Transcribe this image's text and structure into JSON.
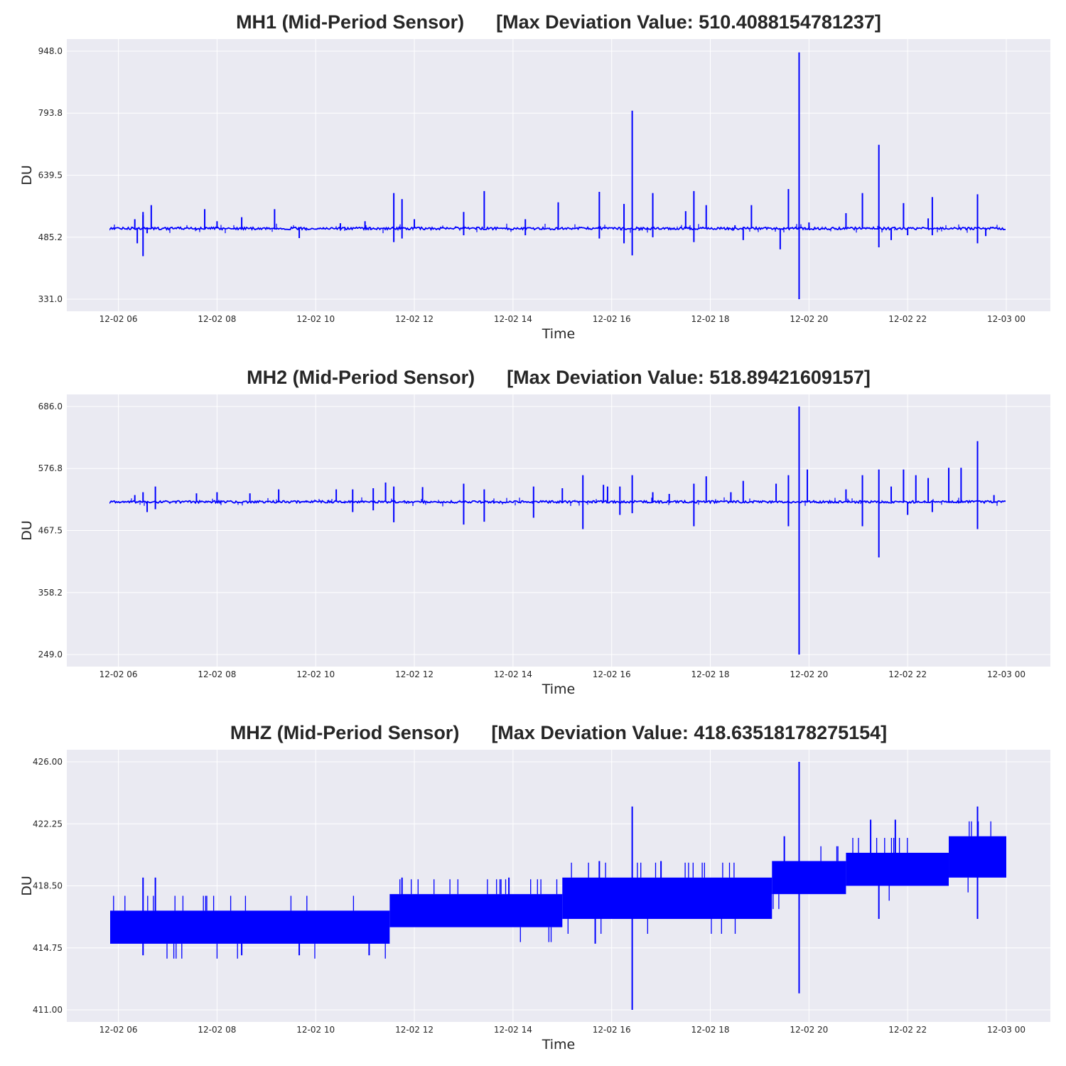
{
  "chart_data": [
    {
      "type": "line",
      "title": "MH1 (Mid-Period Sensor)      [Max Deviation Value: 510.4088154781237]",
      "xlabel": "Time",
      "ylabel": "DU",
      "x_range": [
        "2024-12-02 05:50",
        "2024-12-03 00:00"
      ],
      "ylim": [
        331.0,
        948.0
      ],
      "yticks": [
        "948.0",
        "793.8",
        "639.5",
        "485.2",
        "331.0"
      ],
      "xticks": [
        "12-02 06",
        "12-02 08",
        "12-02 10",
        "12-02 12",
        "12-02 14",
        "12-02 16",
        "12-02 18",
        "12-02 20",
        "12-02 22",
        "12-03 00"
      ],
      "grid": true,
      "color": "#0000ff",
      "baseline": 507,
      "noise": 3,
      "spikes": [
        {
          "t": "12-02 06:20",
          "v": 530
        },
        {
          "t": "12-02 06:23",
          "v": 470
        },
        {
          "t": "12-02 06:30",
          "v": 540
        },
        {
          "t": "12-02 06:35",
          "v": 495
        },
        {
          "t": "12-02 06:30",
          "v": 548
        },
        {
          "t": "12-02 06:30",
          "v": 438
        },
        {
          "t": "12-02 06:40",
          "v": 565
        },
        {
          "t": "12-02 07:45",
          "v": 555
        },
        {
          "t": "12-02 08:00",
          "v": 525
        },
        {
          "t": "12-02 08:30",
          "v": 535
        },
        {
          "t": "12-02 09:10",
          "v": 555
        },
        {
          "t": "12-02 09:40",
          "v": 483
        },
        {
          "t": "12-02 10:30",
          "v": 520
        },
        {
          "t": "12-02 11:00",
          "v": 525
        },
        {
          "t": "12-02 11:35",
          "v": 595
        },
        {
          "t": "12-02 11:35",
          "v": 473
        },
        {
          "t": "12-02 11:45",
          "v": 580
        },
        {
          "t": "12-02 11:45",
          "v": 482
        },
        {
          "t": "12-02 12:00",
          "v": 530
        },
        {
          "t": "12-02 13:00",
          "v": 548
        },
        {
          "t": "12-02 13:00",
          "v": 490
        },
        {
          "t": "12-02 13:25",
          "v": 600
        },
        {
          "t": "12-02 14:15",
          "v": 530
        },
        {
          "t": "12-02 14:15",
          "v": 490
        },
        {
          "t": "12-02 14:55",
          "v": 572
        },
        {
          "t": "12-02 15:45",
          "v": 598
        },
        {
          "t": "12-02 15:45",
          "v": 482
        },
        {
          "t": "12-02 16:15",
          "v": 568
        },
        {
          "t": "12-02 16:15",
          "v": 470
        },
        {
          "t": "12-02 16:25",
          "v": 800
        },
        {
          "t": "12-02 16:25",
          "v": 440
        },
        {
          "t": "12-02 16:50",
          "v": 595
        },
        {
          "t": "12-02 16:50",
          "v": 485
        },
        {
          "t": "12-02 17:30",
          "v": 550
        },
        {
          "t": "12-02 17:40",
          "v": 600
        },
        {
          "t": "12-02 17:40",
          "v": 473
        },
        {
          "t": "12-02 17:55",
          "v": 565
        },
        {
          "t": "12-02 18:30",
          "v": 515
        },
        {
          "t": "12-02 18:50",
          "v": 565
        },
        {
          "t": "12-02 18:40",
          "v": 478
        },
        {
          "t": "12-02 19:25",
          "v": 455
        },
        {
          "t": "12-02 19:35",
          "v": 605
        },
        {
          "t": "12-02 19:48",
          "v": 945
        },
        {
          "t": "12-02 19:48",
          "v": 331
        },
        {
          "t": "12-02 20:00",
          "v": 522
        },
        {
          "t": "12-02 20:45",
          "v": 545
        },
        {
          "t": "12-02 21:05",
          "v": 595
        },
        {
          "t": "12-02 21:25",
          "v": 715
        },
        {
          "t": "12-02 21:25",
          "v": 460
        },
        {
          "t": "12-02 21:40",
          "v": 478
        },
        {
          "t": "12-02 21:55",
          "v": 570
        },
        {
          "t": "12-02 22:00",
          "v": 490
        },
        {
          "t": "12-02 22:25",
          "v": 532
        },
        {
          "t": "12-02 22:30",
          "v": 585
        },
        {
          "t": "12-02 22:30",
          "v": 490
        },
        {
          "t": "12-02 23:25",
          "v": 592
        },
        {
          "t": "12-02 23:25",
          "v": 470
        },
        {
          "t": "12-02 23:35",
          "v": 488
        }
      ]
    },
    {
      "type": "line",
      "title": "MH2 (Mid-Period Sensor)      [Max Deviation Value: 518.89421609157]",
      "xlabel": "Time",
      "ylabel": "DU",
      "x_range": [
        "2024-12-02 05:50",
        "2024-12-03 00:00"
      ],
      "ylim": [
        249.0,
        686.0
      ],
      "yticks": [
        "686.0",
        "576.8",
        "467.5",
        "358.2",
        "249.0"
      ],
      "xticks": [
        "12-02 06",
        "12-02 08",
        "12-02 10",
        "12-02 12",
        "12-02 14",
        "12-02 16",
        "12-02 18",
        "12-02 20",
        "12-02 22",
        "12-03 00"
      ],
      "grid": true,
      "color": "#0000ff",
      "baseline": 518,
      "noise": 2,
      "spikes": [
        {
          "t": "12-02 06:20",
          "v": 530
        },
        {
          "t": "12-02 06:30",
          "v": 535
        },
        {
          "t": "12-02 06:35",
          "v": 500
        },
        {
          "t": "12-02 06:45",
          "v": 545
        },
        {
          "t": "12-02 06:45",
          "v": 505
        },
        {
          "t": "12-02 07:10",
          "v": 515
        },
        {
          "t": "12-02 07:35",
          "v": 533
        },
        {
          "t": "12-02 08:00",
          "v": 535
        },
        {
          "t": "12-02 08:40",
          "v": 533
        },
        {
          "t": "12-02 09:15",
          "v": 540
        },
        {
          "t": "12-02 09:50",
          "v": 520
        },
        {
          "t": "12-02 10:25",
          "v": 540
        },
        {
          "t": "12-02 10:45",
          "v": 540
        },
        {
          "t": "12-02 10:45",
          "v": 500
        },
        {
          "t": "12-02 11:10",
          "v": 542
        },
        {
          "t": "12-02 11:10",
          "v": 503
        },
        {
          "t": "12-02 11:25",
          "v": 552
        },
        {
          "t": "12-02 11:35",
          "v": 545
        },
        {
          "t": "12-02 11:35",
          "v": 482
        },
        {
          "t": "12-02 12:10",
          "v": 544
        },
        {
          "t": "12-02 13:00",
          "v": 550
        },
        {
          "t": "12-02 13:00",
          "v": 478
        },
        {
          "t": "12-02 13:25",
          "v": 540
        },
        {
          "t": "12-02 13:25",
          "v": 483
        },
        {
          "t": "12-02 14:25",
          "v": 545
        },
        {
          "t": "12-02 14:25",
          "v": 490
        },
        {
          "t": "12-02 15:00",
          "v": 542
        },
        {
          "t": "12-02 15:25",
          "v": 565
        },
        {
          "t": "12-02 15:25",
          "v": 470
        },
        {
          "t": "12-02 15:50",
          "v": 548
        },
        {
          "t": "12-02 15:55",
          "v": 545
        },
        {
          "t": "12-02 16:10",
          "v": 545
        },
        {
          "t": "12-02 16:10",
          "v": 495
        },
        {
          "t": "12-02 16:25",
          "v": 565
        },
        {
          "t": "12-02 16:25",
          "v": 498
        },
        {
          "t": "12-02 16:50",
          "v": 535
        },
        {
          "t": "12-02 17:10",
          "v": 532
        },
        {
          "t": "12-02 17:40",
          "v": 550
        },
        {
          "t": "12-02 17:40",
          "v": 475
        },
        {
          "t": "12-02 17:55",
          "v": 563
        },
        {
          "t": "12-02 18:25",
          "v": 535
        },
        {
          "t": "12-02 18:40",
          "v": 555
        },
        {
          "t": "12-02 19:20",
          "v": 550
        },
        {
          "t": "12-02 19:35",
          "v": 565
        },
        {
          "t": "12-02 19:35",
          "v": 475
        },
        {
          "t": "12-02 19:48",
          "v": 686
        },
        {
          "t": "12-02 19:48",
          "v": 249
        },
        {
          "t": "12-02 19:58",
          "v": 575
        },
        {
          "t": "12-02 20:45",
          "v": 540
        },
        {
          "t": "12-02 21:05",
          "v": 565
        },
        {
          "t": "12-02 21:05",
          "v": 475
        },
        {
          "t": "12-02 21:25",
          "v": 575
        },
        {
          "t": "12-02 21:25",
          "v": 420
        },
        {
          "t": "12-02 21:40",
          "v": 545
        },
        {
          "t": "12-02 21:55",
          "v": 575
        },
        {
          "t": "12-02 22:00",
          "v": 495
        },
        {
          "t": "12-02 22:10",
          "v": 565
        },
        {
          "t": "12-02 22:25",
          "v": 560
        },
        {
          "t": "12-02 22:30",
          "v": 500
        },
        {
          "t": "12-02 22:50",
          "v": 578
        },
        {
          "t": "12-02 23:05",
          "v": 578
        },
        {
          "t": "12-02 23:25",
          "v": 625
        },
        {
          "t": "12-02 23:25",
          "v": 470
        },
        {
          "t": "12-02 23:45",
          "v": 530
        }
      ]
    },
    {
      "type": "line",
      "title": "MHZ (Mid-Period Sensor)      [Max Deviation Value: 418.63518178275154]",
      "xlabel": "Time",
      "ylabel": "DU",
      "x_range": [
        "2024-12-02 05:50",
        "2024-12-03 00:00"
      ],
      "ylim": [
        411.0,
        426.0
      ],
      "yticks": [
        "426.00",
        "422.25",
        "418.50",
        "414.75",
        "411.00"
      ],
      "xticks": [
        "12-02 06",
        "12-02 08",
        "12-02 10",
        "12-02 12",
        "12-02 14",
        "12-02 16",
        "12-02 18",
        "12-02 20",
        "12-02 22",
        "12-03 00"
      ],
      "grid": true,
      "color": "#0000ff",
      "band_segments": [
        {
          "t0": "12-02 05:50",
          "t1": "12-02 11:30",
          "low": 415,
          "high": 417
        },
        {
          "t0": "12-02 11:30",
          "t1": "12-02 15:00",
          "low": 416,
          "high": 418
        },
        {
          "t0": "12-02 15:00",
          "t1": "12-02 19:15",
          "low": 416.5,
          "high": 419
        },
        {
          "t0": "12-02 19:15",
          "t1": "12-02 20:45",
          "low": 418,
          "high": 420
        },
        {
          "t0": "12-02 20:45",
          "t1": "12-02 22:50",
          "low": 418.5,
          "high": 420.5
        },
        {
          "t0": "12-02 22:50",
          "t1": "12-03 00:00",
          "low": 419,
          "high": 421.5
        }
      ],
      "spikes": [
        {
          "t": "12-02 06:30",
          "v": 419
        },
        {
          "t": "12-02 06:30",
          "v": 414.3
        },
        {
          "t": "12-02 06:45",
          "v": 419
        },
        {
          "t": "12-02 08:30",
          "v": 414.3
        },
        {
          "t": "12-02 09:40",
          "v": 414.3
        },
        {
          "t": "12-02 11:05",
          "v": 414.3
        },
        {
          "t": "12-02 11:45",
          "v": 419
        },
        {
          "t": "12-02 13:55",
          "v": 419
        },
        {
          "t": "12-02 15:45",
          "v": 420
        },
        {
          "t": "12-02 15:40",
          "v": 415
        },
        {
          "t": "12-02 16:25",
          "v": 423.3
        },
        {
          "t": "12-02 16:25",
          "v": 411
        },
        {
          "t": "12-02 17:00",
          "v": 420
        },
        {
          "t": "12-02 19:30",
          "v": 421.5
        },
        {
          "t": "12-02 19:48",
          "v": 426
        },
        {
          "t": "12-02 19:48",
          "v": 412
        },
        {
          "t": "12-02 21:15",
          "v": 422.5
        },
        {
          "t": "12-02 21:25",
          "v": 416.5
        },
        {
          "t": "12-02 21:45",
          "v": 422.5
        },
        {
          "t": "12-02 23:25",
          "v": 423.3
        },
        {
          "t": "12-02 23:25",
          "v": 416.5
        }
      ]
    }
  ]
}
